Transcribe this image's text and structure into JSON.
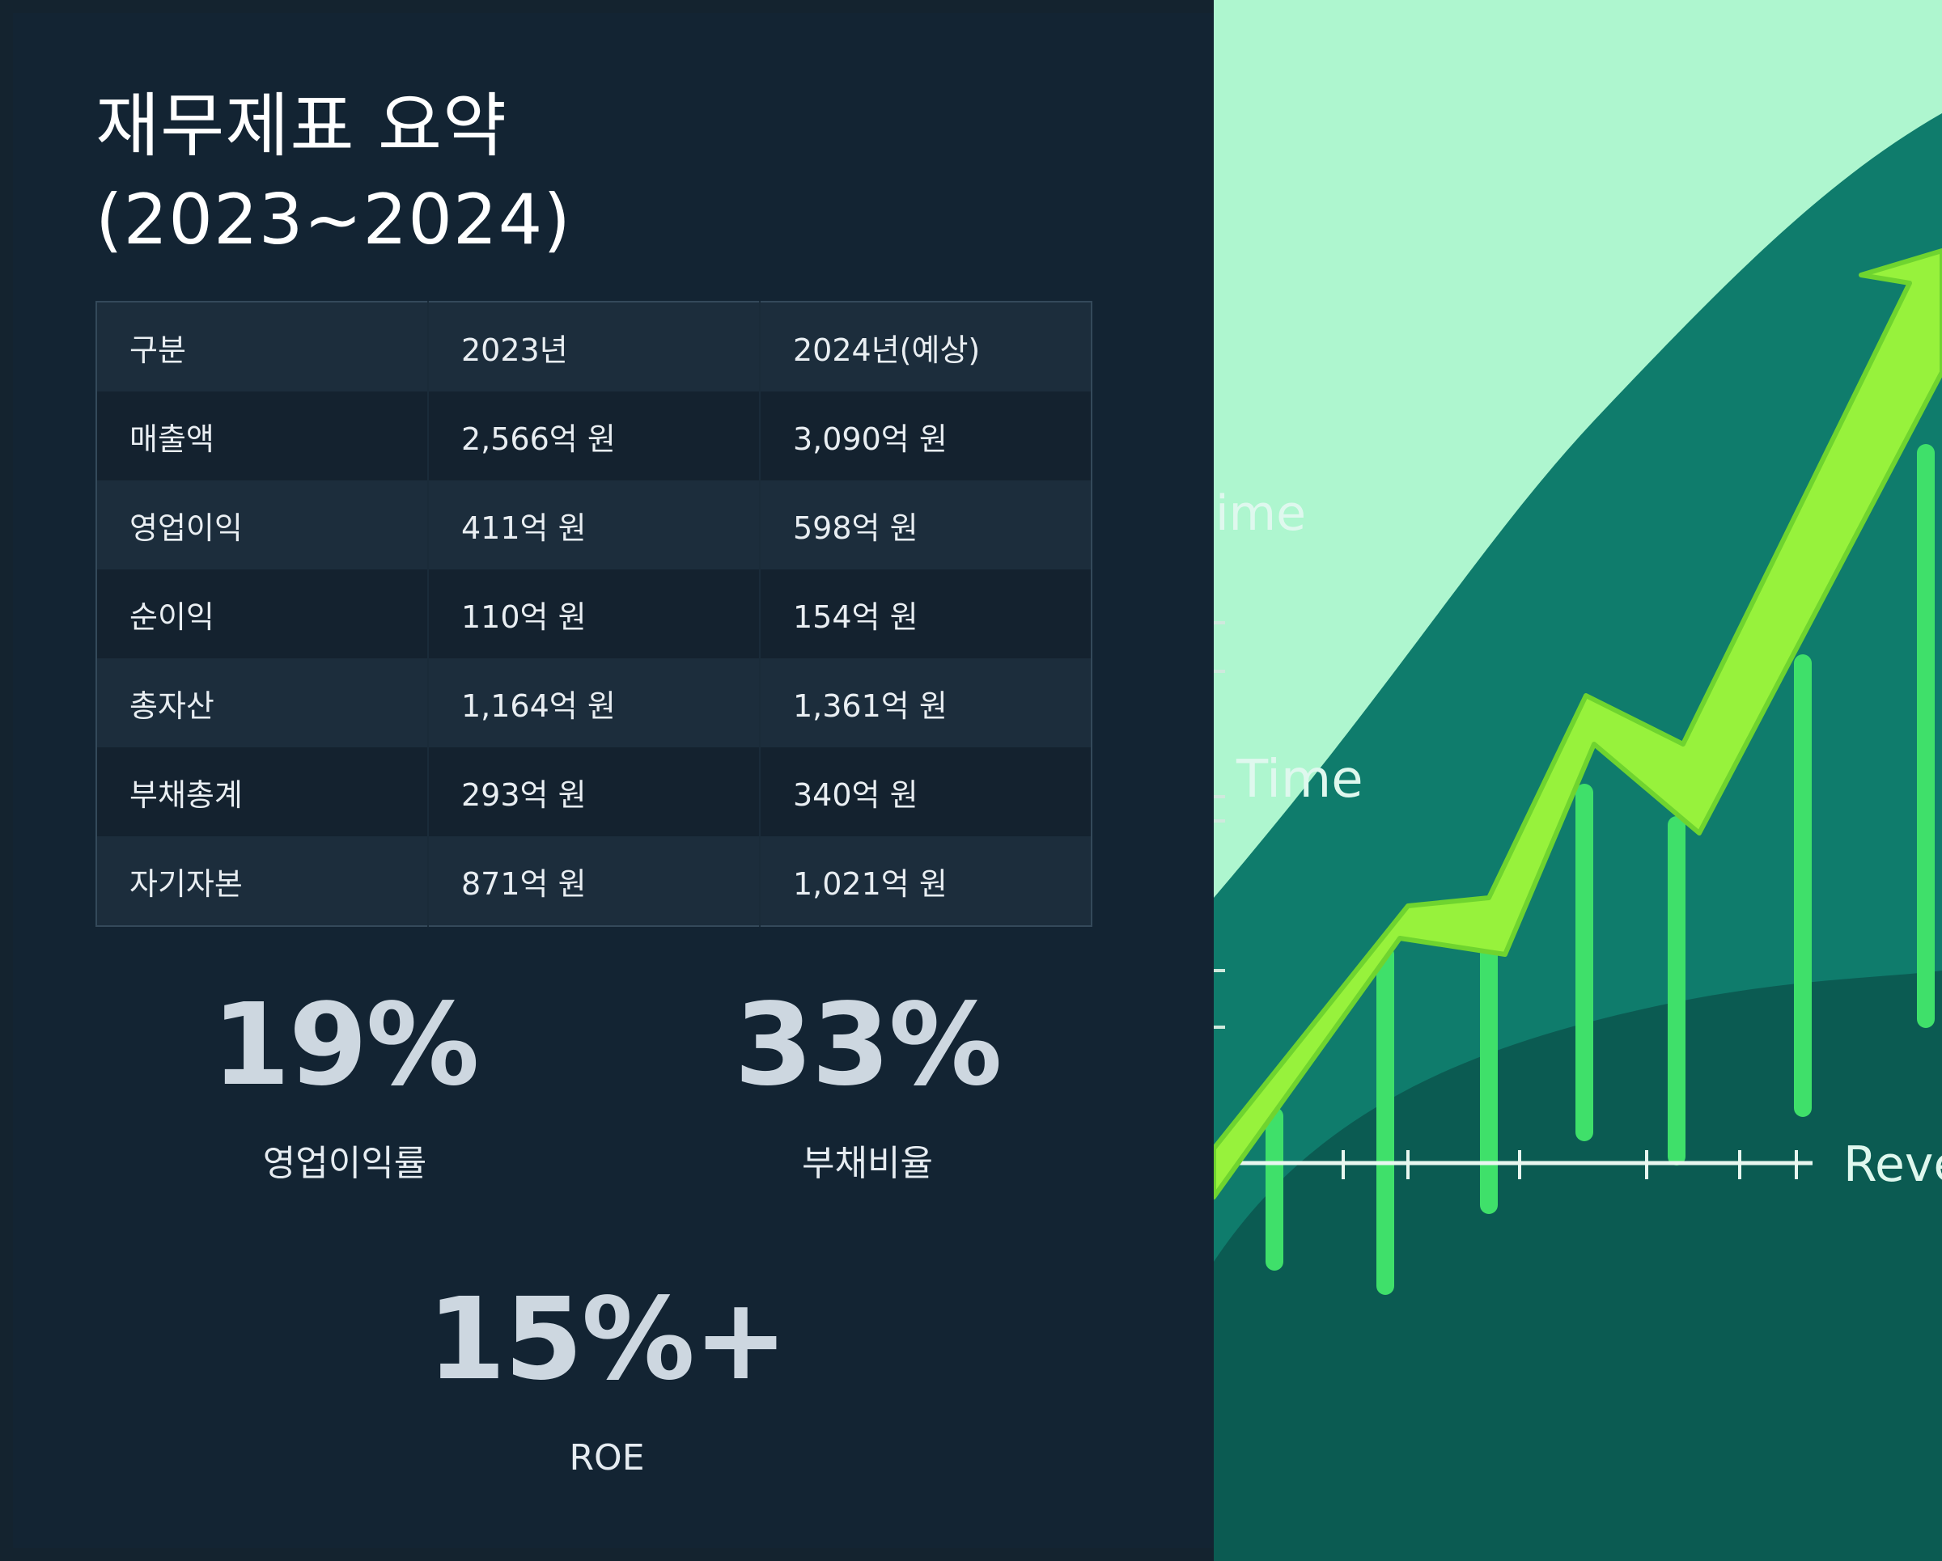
{
  "title": {
    "line1": "재무제표 요약",
    "line2": "(2023~2024)"
  },
  "table": {
    "headers": [
      "구분",
      "2023년",
      "2024년(예상)"
    ],
    "rows": [
      [
        "매출액",
        "2,566억 원",
        "3,090억 원"
      ],
      [
        "영업이익",
        "411억 원",
        "598억 원"
      ],
      [
        "순이익",
        "110억 원",
        "154억 원"
      ],
      [
        "총자산",
        "1,164억 원",
        "1,361억 원"
      ],
      [
        "부채총계",
        "293억 원",
        "340억 원"
      ],
      [
        "자기자본",
        "871억 원",
        "1,021억 원"
      ]
    ]
  },
  "stats": [
    {
      "value": "19%",
      "label": "영업이익률"
    },
    {
      "value": "33%",
      "label": "부채비율"
    },
    {
      "value": "15%+",
      "label": "ROE"
    }
  ],
  "image": {
    "texts": [
      "ime",
      "Time",
      "Reve"
    ],
    "colors": {
      "mint": "#aef6cf",
      "teal": "#0f7c6c",
      "dark_teal": "#0b5b52",
      "arrow": "#97f23c",
      "bars": "#3fe06a"
    }
  }
}
